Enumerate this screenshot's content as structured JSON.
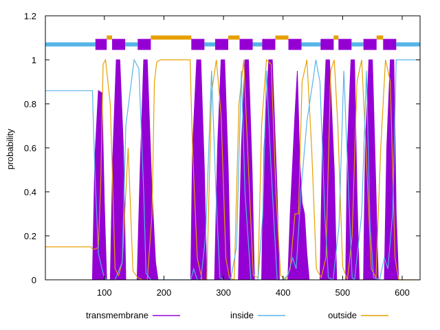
{
  "chart_data": {
    "type": "line",
    "title": "",
    "xlabel": "",
    "ylabel": "probability",
    "xlim": [
      1,
      630
    ],
    "ylim": [
      0,
      1.2
    ],
    "x_ticks": [
      100,
      200,
      300,
      400,
      500,
      600
    ],
    "y_ticks": [
      0,
      0.2,
      0.4,
      0.6,
      0.8,
      1,
      1.2
    ],
    "y_tick_labels": [
      "0",
      "0.2",
      "0.4",
      "0.6",
      "0.8",
      "1",
      "1.2"
    ],
    "grid": false,
    "legend_position": "bottom",
    "series": [
      {
        "name": "transmembrane",
        "color": "#9400d3",
        "style": "filled",
        "x": [
          1,
          80,
          84,
          90,
          96,
          100,
          104,
          110,
          114,
          120,
          126,
          132,
          136,
          155,
          160,
          166,
          172,
          180,
          186,
          190,
          245,
          248,
          255,
          262,
          268,
          272,
          285,
          290,
          296,
          302,
          308,
          312,
          325,
          330,
          336,
          342,
          348,
          352,
          364,
          368,
          376,
          382,
          390,
          394,
          408,
          412,
          420,
          424,
          428,
          432,
          436,
          440,
          444,
          462,
          466,
          472,
          478,
          486,
          490,
          505,
          508,
          514,
          520,
          524,
          528,
          535,
          538,
          544,
          550,
          556,
          560,
          570,
          574,
          580,
          586,
          590,
          594,
          630
        ],
        "y": [
          0,
          0,
          0.55,
          0.86,
          0.85,
          0.35,
          0,
          0,
          0.55,
          1,
          1,
          0.6,
          0,
          0,
          0.5,
          1,
          1,
          0.4,
          0.08,
          0,
          0,
          0.6,
          1,
          1,
          0.5,
          0,
          0,
          0.6,
          1,
          1,
          0.5,
          0,
          0,
          0.6,
          1,
          1,
          0.5,
          0,
          0,
          0.6,
          1,
          1,
          0.4,
          0,
          0,
          0.3,
          0.75,
          0.95,
          0.55,
          0.35,
          0.3,
          0.12,
          0,
          0,
          0.6,
          1,
          1,
          0.5,
          0,
          0,
          0.6,
          1,
          1,
          0.4,
          0,
          0,
          0.6,
          1,
          1,
          0.4,
          0,
          0,
          0.6,
          1,
          1,
          0.3,
          0,
          0
        ]
      },
      {
        "name": "inside",
        "color": "#56b4e9",
        "x": [
          1,
          80,
          84,
          90,
          96,
          100,
          104,
          110,
          118,
          130,
          136,
          150,
          158,
          166,
          170,
          178,
          186,
          192,
          245,
          250,
          256,
          262,
          270,
          280,
          288,
          294,
          300,
          312,
          322,
          330,
          336,
          346,
          358,
          366,
          372,
          380,
          390,
          400,
          408,
          416,
          422,
          430,
          440,
          450,
          455,
          462,
          470,
          476,
          484,
          494,
          502,
          510,
          516,
          520,
          532,
          540,
          546,
          552,
          562,
          570,
          576,
          584,
          590,
          596,
          630
        ],
        "y": [
          0.86,
          0.86,
          0.5,
          0.12,
          0.05,
          0.01,
          0,
          0,
          0,
          0.08,
          0.7,
          1,
          0.96,
          0.4,
          0.03,
          0,
          0,
          0,
          0,
          0.05,
          0,
          0,
          0.2,
          0.95,
          0.35,
          0.01,
          0,
          0,
          0.15,
          0.95,
          0.4,
          0,
          0,
          0.3,
          0.95,
          0.5,
          0,
          0,
          0.02,
          0.1,
          0.05,
          0.4,
          0.72,
          0.9,
          1,
          0.9,
          0.3,
          0.01,
          0,
          0.25,
          0.95,
          0.4,
          0.01,
          0,
          0.3,
          0.95,
          0.25,
          0.01,
          0,
          0.1,
          0.05,
          0.3,
          1,
          1,
          1
        ]
      },
      {
        "name": "outside",
        "color": "#e69f00",
        "x": [
          1,
          78,
          80,
          86,
          90,
          94,
          98,
          102,
          110,
          118,
          124,
          130,
          140,
          148,
          156,
          164,
          172,
          180,
          184,
          188,
          194,
          244,
          248,
          256,
          264,
          272,
          280,
          288,
          296,
          304,
          310,
          318,
          326,
          334,
          342,
          350,
          358,
          364,
          372,
          380,
          388,
          396,
          404,
          412,
          420,
          426,
          432,
          440,
          448,
          456,
          464,
          472,
          480,
          486,
          492,
          500,
          508,
          516,
          524,
          532,
          540,
          548,
          556,
          564,
          572,
          580,
          588,
          594,
          630
        ],
        "y": [
          0.15,
          0.15,
          0.14,
          0.14,
          0.15,
          0.45,
          0.98,
          1,
          0.8,
          0.05,
          0.02,
          0.08,
          0.6,
          0.04,
          0.01,
          0,
          0,
          0.3,
          0.9,
          0.99,
          1,
          1,
          0.6,
          0.1,
          0,
          0,
          0.85,
          1,
          0.75,
          0.1,
          0.01,
          0,
          0.8,
          1,
          0.5,
          0.02,
          0.01,
          0.7,
          1,
          0.98,
          0.4,
          0.02,
          0,
          0.05,
          0.3,
          0.3,
          0.9,
          1,
          0.6,
          0.05,
          0.01,
          0.1,
          0.95,
          1,
          0.7,
          0.06,
          0,
          0.2,
          0.9,
          1,
          0.55,
          0.05,
          0.01,
          0.6,
          1,
          0.9,
          0.1,
          0,
          0
        ]
      }
    ],
    "topology": [
      {
        "type": "inside",
        "start": 1,
        "end": 85
      },
      {
        "type": "transmembrane",
        "start": 85,
        "end": 104
      },
      {
        "type": "outside",
        "start": 104,
        "end": 113
      },
      {
        "type": "transmembrane",
        "start": 113,
        "end": 135
      },
      {
        "type": "inside",
        "start": 135,
        "end": 156
      },
      {
        "type": "transmembrane",
        "start": 156,
        "end": 178
      },
      {
        "type": "outside",
        "start": 178,
        "end": 246
      },
      {
        "type": "transmembrane",
        "start": 246,
        "end": 268
      },
      {
        "type": "inside",
        "start": 268,
        "end": 286
      },
      {
        "type": "transmembrane",
        "start": 286,
        "end": 308
      },
      {
        "type": "outside",
        "start": 308,
        "end": 327
      },
      {
        "type": "transmembrane",
        "start": 327,
        "end": 349
      },
      {
        "type": "inside",
        "start": 349,
        "end": 365
      },
      {
        "type": "transmembrane",
        "start": 365,
        "end": 387
      },
      {
        "type": "outside",
        "start": 387,
        "end": 409
      },
      {
        "type": "transmembrane",
        "start": 409,
        "end": 431
      },
      {
        "type": "inside",
        "start": 431,
        "end": 463
      },
      {
        "type": "transmembrane",
        "start": 463,
        "end": 485
      },
      {
        "type": "outside",
        "start": 485,
        "end": 493
      },
      {
        "type": "transmembrane",
        "start": 493,
        "end": 515
      },
      {
        "type": "inside",
        "start": 515,
        "end": 535
      },
      {
        "type": "transmembrane",
        "start": 535,
        "end": 557
      },
      {
        "type": "outside",
        "start": 557,
        "end": 568
      },
      {
        "type": "transmembrane",
        "start": 568,
        "end": 590
      },
      {
        "type": "inside",
        "start": 590,
        "end": 630
      }
    ],
    "colors": {
      "transmembrane": "#9400d3",
      "inside": "#56b4e9",
      "outside": "#e69f00",
      "axis": "#000000"
    }
  }
}
